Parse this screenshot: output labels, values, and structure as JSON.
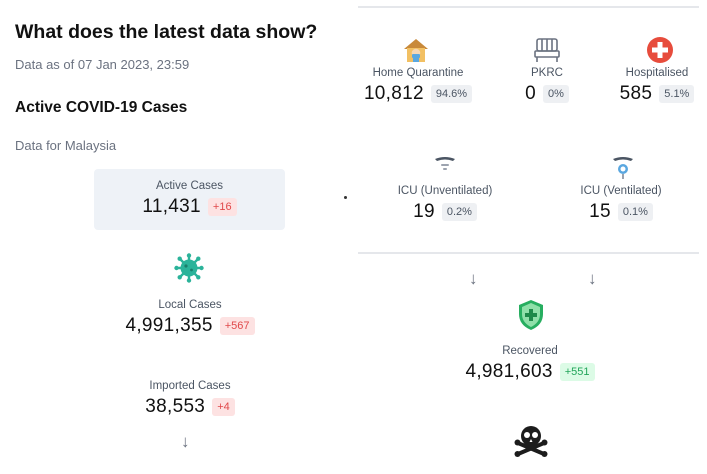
{
  "header": {
    "title": "What does the latest data show?",
    "as_of": "Data as of 07 Jan 2023, 23:59"
  },
  "section": {
    "title": "Active COVID-19 Cases",
    "country": "Data for Malaysia"
  },
  "left": {
    "active": {
      "label": "Active Cases",
      "value": "11,431",
      "delta": "+16"
    },
    "local": {
      "label": "Local Cases",
      "value": "4,991,355",
      "delta": "+567",
      "icon": "virus-icon"
    },
    "imported": {
      "label": "Imported Cases",
      "value": "38,553",
      "delta": "+4"
    }
  },
  "right": {
    "home_quarantine": {
      "label": "Home Quarantine",
      "value": "10,812",
      "pct": "94.6%",
      "icon": "house-mask-icon"
    },
    "pkrc": {
      "label": "PKRC",
      "value": "0",
      "pct": "0%",
      "icon": "bed-icon"
    },
    "hospitalised": {
      "label": "Hospitalised",
      "value": "585",
      "pct": "5.1%",
      "icon": "medical-cross-icon"
    },
    "icu_unventilated": {
      "label": "ICU (Unventilated)",
      "value": "19",
      "pct": "0.2%",
      "icon": "icu-unventilated-icon"
    },
    "icu_ventilated": {
      "label": "ICU (Ventilated)",
      "value": "15",
      "pct": "0.1%",
      "icon": "icu-ventilated-icon"
    },
    "recovered": {
      "label": "Recovered",
      "value": "4,981,603",
      "delta": "+551",
      "icon": "shield-plus-icon"
    },
    "deaths": {
      "icon": "skull-crossbones-icon"
    }
  },
  "colors": {
    "red_badge_bg": "#fde2e2",
    "red_badge_text": "#e0484a",
    "green_badge_bg": "#dcfbe6",
    "green_badge_text": "#22a55a",
    "grey_badge_bg": "#eef0f3",
    "active_box_bg": "#eef2f7",
    "virus": "#2bb39a",
    "shield": "#27ae60",
    "hospital_red": "#e74c3c"
  }
}
